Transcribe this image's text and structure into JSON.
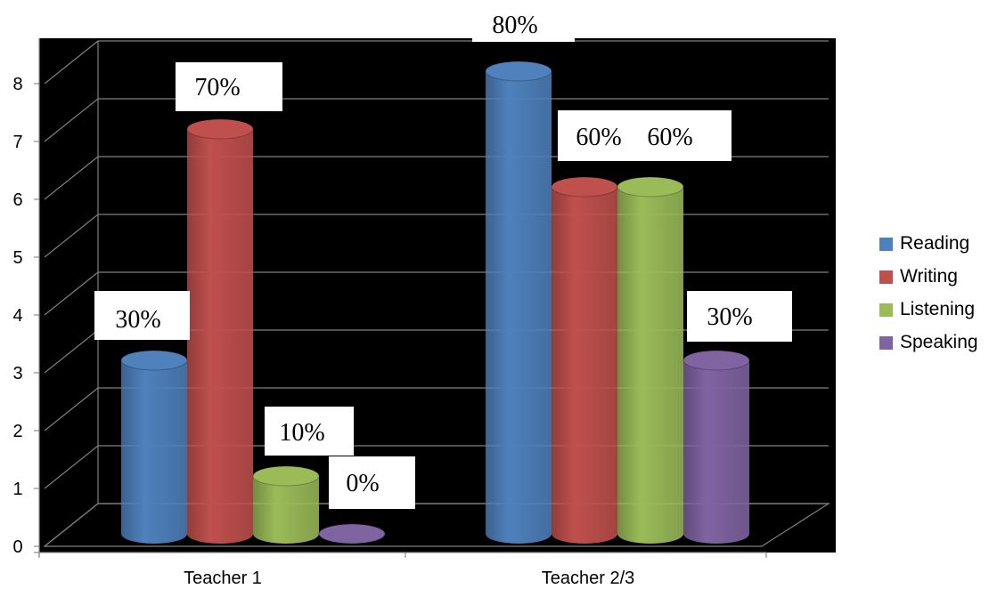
{
  "chart_data": {
    "type": "bar",
    "categories": [
      "Teacher 1",
      "Teacher 2/3"
    ],
    "series": [
      {
        "name": "Reading",
        "values": [
          3,
          8
        ],
        "color": "#4F81BD",
        "labels": [
          "30%",
          "80%"
        ]
      },
      {
        "name": "Writing",
        "values": [
          7,
          6
        ],
        "color": "#C0504D",
        "labels": [
          "70%",
          "60%"
        ]
      },
      {
        "name": "Listening",
        "values": [
          1,
          6
        ],
        "color": "#9BBB59",
        "labels": [
          "10%",
          "60%"
        ]
      },
      {
        "name": "Speaking",
        "values": [
          0,
          3
        ],
        "color": "#8064A2",
        "labels": [
          "0%",
          "30%"
        ]
      }
    ],
    "yticks": [
      "0",
      "1",
      "2",
      "3",
      "4",
      "5",
      "6",
      "7",
      "8"
    ],
    "ylim": [
      0,
      8
    ],
    "grid": true,
    "legend_position": "right",
    "background": "#000000"
  }
}
